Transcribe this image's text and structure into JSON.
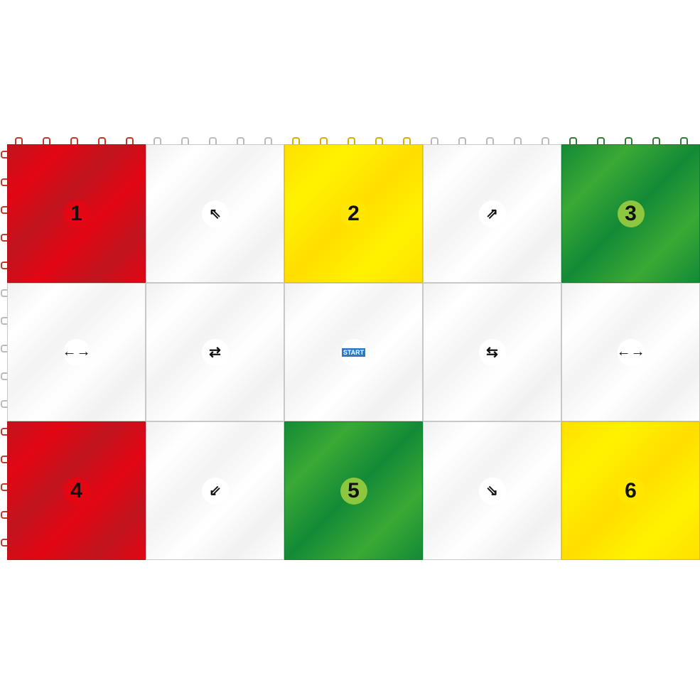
{
  "tiles": [
    {
      "color": "red",
      "label": "1"
    },
    {
      "color": "white",
      "icon": "arrow-up-left-icon",
      "glyph": "⇖"
    },
    {
      "color": "yellow",
      "label": "2"
    },
    {
      "color": "white",
      "icon": "arrow-up-right-icon",
      "glyph": "⇗"
    },
    {
      "color": "green",
      "label": "3"
    },
    {
      "color": "white",
      "icon": "left-right-arrow-icon",
      "glyph": "←→"
    },
    {
      "color": "white",
      "icon": "swap-arrows-icon",
      "glyph": "⇄"
    },
    {
      "color": "white",
      "icon": "start-logo",
      "start": "START"
    },
    {
      "color": "white",
      "icon": "swap-arrows-icon",
      "glyph": "⇆"
    },
    {
      "color": "white",
      "icon": "left-right-arrow-icon",
      "glyph": "←→"
    },
    {
      "color": "red",
      "label": "4"
    },
    {
      "color": "white",
      "icon": "arrow-down-left-icon",
      "glyph": "⇙"
    },
    {
      "color": "green",
      "label": "5"
    },
    {
      "color": "white",
      "icon": "arrow-down-right-icon",
      "glyph": "⇘"
    },
    {
      "color": "yellow",
      "label": "6"
    }
  ],
  "colors": {
    "red": "#e30613",
    "yellow": "#fff200",
    "green": "#3aa935",
    "white": "#ffffff"
  }
}
